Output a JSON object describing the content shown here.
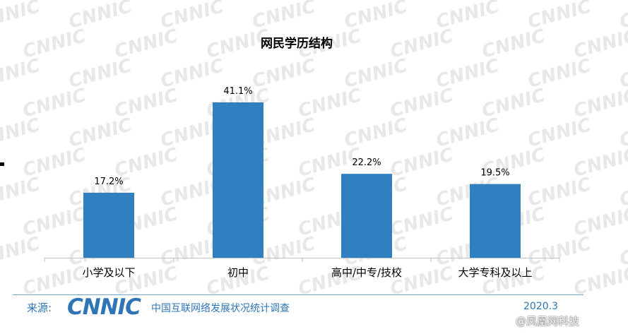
{
  "chart_data": {
    "type": "bar",
    "title": "网民学历结构",
    "categories": [
      "小学及以下",
      "初中",
      "高中/中专/技校",
      "大学专科及以上"
    ],
    "values": [
      17.2,
      41.1,
      22.2,
      19.5
    ],
    "data_labels": [
      "17.2%",
      "41.1%",
      "22.2%",
      "19.5%"
    ],
    "unit": "%",
    "ylim": [
      0,
      45
    ],
    "grid": false,
    "legend": "none",
    "bar_color": "#2f7fc1"
  },
  "footer": {
    "source_label": "来源:",
    "logo_text": "CNNIC",
    "org_name": "中国互联网络发展状况统计调查",
    "date": "2020.3"
  },
  "watermark": {
    "text": "CNNIC",
    "credit": "@凤凰网科技"
  },
  "colors": {
    "accent": "#2f75b5",
    "bar": "#2f7fc1",
    "watermark": "#e8e8e8"
  }
}
